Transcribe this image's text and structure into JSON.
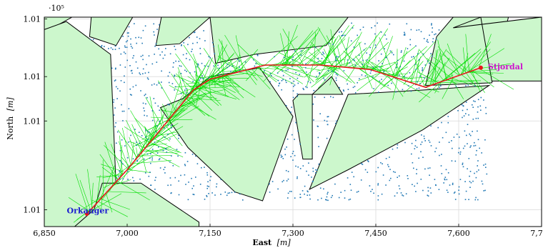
{
  "chart_data": {
    "type": "scatter",
    "xlabel": "East",
    "xlabel_unit": "[m]",
    "ylabel": "North",
    "ylabel_unit": "[m]",
    "y_multiplier": "·10⁵",
    "xlim": [
      6850,
      7750
    ],
    "ylim": [
      100796,
      101032
    ],
    "x_ticks": [
      6850,
      7000,
      7150,
      7300,
      7450,
      7600,
      7750
    ],
    "x_tick_labels": [
      "6,850",
      "7,000",
      "7,150",
      "7,300",
      "7,450",
      "7,600",
      "7,750"
    ],
    "y_ticks": [
      100815,
      100915,
      100965,
      101030
    ],
    "y_tick_labels": [
      "1.01",
      "1.01",
      "1.01",
      "1.01"
    ],
    "grid": true,
    "colors": {
      "obstacle_fill": "#ccf7cc",
      "obstacle_stroke": "#000000",
      "tree_edges": "#00dd00",
      "samples": "#1f77b4",
      "path": "#e8161b",
      "start_label": "#1c1cd0",
      "goal_label": "#cc14cc"
    },
    "start": {
      "label": "Orkanger",
      "x": 6927,
      "y": 100810
    },
    "goal": {
      "label": "Stjordal",
      "x": 7640,
      "y": 100975
    },
    "path": {
      "x": [
        6927,
        7000,
        7060,
        7120,
        7150,
        7250,
        7350,
        7440,
        7540,
        7640
      ],
      "y": [
        100810,
        100860,
        100905,
        100950,
        100962,
        100978,
        100978,
        100973,
        100953,
        100975
      ]
    },
    "obstacles": [
      [
        [
          6850,
          101015
        ],
        [
          6880,
          101025
        ],
        [
          6900,
          101032
        ],
        [
          6850,
          101032
        ]
      ],
      [
        [
          6850,
          100796
        ],
        [
          6850,
          101018
        ],
        [
          6890,
          101027
        ],
        [
          6970,
          100990
        ],
        [
          6980,
          100840
        ],
        [
          6910,
          100796
        ]
      ],
      [
        [
          6935,
          101032
        ],
        [
          7010,
          101032
        ],
        [
          6980,
          101000
        ],
        [
          6932,
          101010
        ]
      ],
      [
        [
          7062,
          101032
        ],
        [
          7150,
          101032
        ],
        [
          7095,
          101002
        ],
        [
          7052,
          101000
        ]
      ],
      [
        [
          7150,
          101032
        ],
        [
          7400,
          101032
        ],
        [
          7360,
          101000
        ],
        [
          7230,
          100990
        ],
        [
          7160,
          100980
        ]
      ],
      [
        [
          6955,
          100845
        ],
        [
          7025,
          100845
        ],
        [
          7130,
          100801
        ],
        [
          7130,
          100796
        ],
        [
          6905,
          100796
        ],
        [
          6940,
          100815
        ]
      ],
      [
        [
          7060,
          100930
        ],
        [
          7100,
          100940
        ],
        [
          7150,
          100965
        ],
        [
          7240,
          100975
        ],
        [
          7300,
          100920
        ],
        [
          7245,
          100825
        ],
        [
          7195,
          100835
        ],
        [
          7110,
          100885
        ]
      ],
      [
        [
          7300,
          100938
        ],
        [
          7310,
          100945
        ],
        [
          7335,
          100945
        ],
        [
          7335,
          100872
        ],
        [
          7318,
          100872
        ]
      ],
      [
        [
          7335,
          100945
        ],
        [
          7370,
          100965
        ],
        [
          7390,
          100945
        ]
      ],
      [
        [
          7330,
          100838
        ],
        [
          7400,
          100860
        ],
        [
          7535,
          100905
        ],
        [
          7655,
          100955
        ],
        [
          7540,
          100950
        ],
        [
          7400,
          100945
        ]
      ],
      [
        [
          7540,
          100955
        ],
        [
          7660,
          100958
        ],
        [
          7690,
          101032
        ],
        [
          7590,
          101032
        ],
        [
          7560,
          101010
        ]
      ],
      [
        [
          7590,
          101020
        ],
        [
          7640,
          101032
        ],
        [
          7660,
          100960
        ],
        [
          7750,
          100960
        ],
        [
          7750,
          101032
        ]
      ]
    ]
  }
}
